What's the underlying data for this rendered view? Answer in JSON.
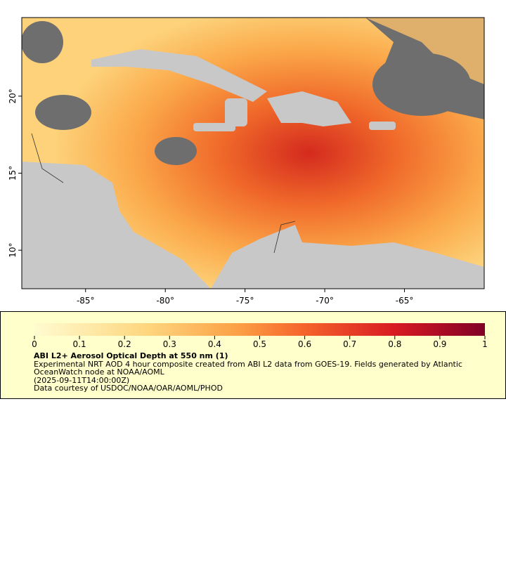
{
  "map": {
    "xlim": [
      -89,
      -60
    ],
    "ylim": [
      7.5,
      25.1
    ],
    "xticks": [
      {
        "value": -85,
        "label": "-85°"
      },
      {
        "value": -80,
        "label": "-80°"
      },
      {
        "value": -75,
        "label": "-75°"
      },
      {
        "value": -70,
        "label": "-70°"
      },
      {
        "value": -65,
        "label": "-65°"
      }
    ],
    "yticks": [
      {
        "value": 10,
        "label": "10°"
      },
      {
        "value": 15,
        "label": "15°"
      },
      {
        "value": 20,
        "label": "20°"
      }
    ]
  },
  "colorbar": {
    "lim": [
      0,
      1
    ],
    "ticks": [
      0,
      0.1,
      0.2,
      0.3,
      0.4,
      0.5,
      0.6,
      0.7,
      0.8,
      0.9,
      1
    ]
  },
  "legend": {
    "title": "ABI L2+ Aerosol Optical Depth at 550 nm (1)",
    "description": "Experimental NRT AOD 4 hour composite created from ABI L2 data from GOES-19. Fields generated by Atlantic OceanWatch node at NOAA/AOML",
    "time": "(2025-09-11T14:00:00Z)",
    "credit": "Data courtesy of USDOC/NOAA/OAR/AOML/PHOD"
  }
}
